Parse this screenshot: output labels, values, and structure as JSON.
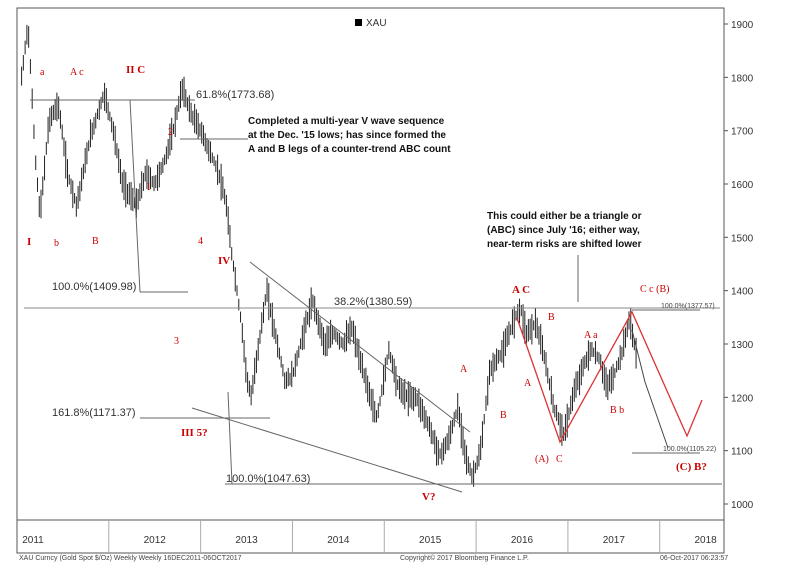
{
  "chart_data": {
    "type": "candlestick",
    "title": "",
    "legend": {
      "label": "XAU",
      "color": "#000000",
      "placement": "top-center"
    },
    "footer": {
      "left": "XAU Curncy (Gold Spot  $/Oz) Weekly  Weekly 16DEC2011-06OCT2017",
      "center": "Copyright© 2017 Bloomberg Finance L.P.",
      "right": "06-Oct-2017 06:23:57"
    },
    "x_axis": {
      "labels": [
        "2011",
        "2012",
        "2013",
        "2014",
        "2015",
        "2016",
        "2017",
        "2018"
      ],
      "range": [
        2011.0,
        2018.7
      ]
    },
    "y_axis": {
      "ticks": [
        1000,
        1100,
        1200,
        1300,
        1400,
        1500,
        1600,
        1700,
        1800,
        1900
      ],
      "tick_labels": [
        "1000",
        "1100",
        "1200",
        "1300",
        "1400",
        "1500",
        "1600",
        "1700",
        "1800",
        "1900"
      ],
      "range": [
        970,
        1930
      ],
      "position": "right"
    },
    "price_path": [
      [
        2011.05,
        1800
      ],
      [
        2011.12,
        1900
      ],
      [
        2011.2,
        1650
      ],
      [
        2011.25,
        1540
      ],
      [
        2011.35,
        1720
      ],
      [
        2011.45,
        1750
      ],
      [
        2011.55,
        1620
      ],
      [
        2011.65,
        1560
      ],
      [
        2011.8,
        1690
      ],
      [
        2011.95,
        1770
      ],
      [
        2012.05,
        1700
      ],
      [
        2012.15,
        1600
      ],
      [
        2012.3,
        1560
      ],
      [
        2012.4,
        1620
      ],
      [
        2012.5,
        1600
      ],
      [
        2012.6,
        1640
      ],
      [
        2012.7,
        1700
      ],
      [
        2012.8,
        1780
      ],
      [
        2012.9,
        1730
      ],
      [
        2013.0,
        1700
      ],
      [
        2013.1,
        1660
      ],
      [
        2013.2,
        1620
      ],
      [
        2013.28,
        1560
      ],
      [
        2013.33,
        1480
      ],
      [
        2013.38,
        1420
      ],
      [
        2013.45,
        1330
      ],
      [
        2013.5,
        1240
      ],
      [
        2013.55,
        1200
      ],
      [
        2013.65,
        1320
      ],
      [
        2013.72,
        1400
      ],
      [
        2013.8,
        1330
      ],
      [
        2013.92,
        1230
      ],
      [
        2014.0,
        1240
      ],
      [
        2014.15,
        1340
      ],
      [
        2014.22,
        1380
      ],
      [
        2014.35,
        1300
      ],
      [
        2014.45,
        1320
      ],
      [
        2014.55,
        1300
      ],
      [
        2014.65,
        1330
      ],
      [
        2014.75,
        1260
      ],
      [
        2014.85,
        1200
      ],
      [
        2014.92,
        1160
      ],
      [
        2015.05,
        1290
      ],
      [
        2015.15,
        1220
      ],
      [
        2015.25,
        1200
      ],
      [
        2015.35,
        1200
      ],
      [
        2015.5,
        1140
      ],
      [
        2015.6,
        1090
      ],
      [
        2015.7,
        1120
      ],
      [
        2015.8,
        1180
      ],
      [
        2015.9,
        1080
      ],
      [
        2015.96,
        1050
      ],
      [
        2016.05,
        1100
      ],
      [
        2016.15,
        1250
      ],
      [
        2016.3,
        1290
      ],
      [
        2016.4,
        1340
      ],
      [
        2016.48,
        1370
      ],
      [
        2016.55,
        1320
      ],
      [
        2016.65,
        1340
      ],
      [
        2016.75,
        1270
      ],
      [
        2016.85,
        1180
      ],
      [
        2016.96,
        1130
      ],
      [
        2017.05,
        1200
      ],
      [
        2017.15,
        1250
      ],
      [
        2017.25,
        1290
      ],
      [
        2017.35,
        1270
      ],
      [
        2017.42,
        1220
      ],
      [
        2017.5,
        1240
      ],
      [
        2017.6,
        1290
      ],
      [
        2017.67,
        1350
      ],
      [
        2017.72,
        1300
      ],
      [
        2017.75,
        1280
      ]
    ],
    "fib_levels": [
      {
        "label": "61.8%(1773.68)",
        "value": 1773.68
      },
      {
        "label": "100.0%(1409.98)",
        "value": 1409.98
      },
      {
        "label": "38.2%(1380.59)",
        "value": 1380.59
      },
      {
        "label": "161.8%(1171.37)",
        "value": 1171.37
      },
      {
        "label": "100.0%(1047.63)",
        "value": 1047.63
      },
      {
        "label": "100.0%(1377.57)",
        "value": 1377.57
      },
      {
        "label": "100.0%(1105.22)",
        "value": 1105.22
      }
    ],
    "wave_labels": [
      "I",
      "a",
      "A c",
      "b",
      "B",
      "II C",
      "2",
      "1",
      "4",
      "3",
      "IV",
      "III 5?",
      "V?",
      "A C",
      "A",
      "B",
      "A",
      "B",
      "(A)",
      "C",
      "A a",
      "B b",
      "C c (B)",
      "(C) B?"
    ],
    "annotations": [
      "Completed a multi-year V wave sequence",
      "at the Dec. '15 lows; has since formed the",
      "A and B legs of a counter-trend ABC count",
      "This could either be a triangle or",
      "(ABC) since July '16; either way,",
      "near-term risks are shifted lower"
    ],
    "colors": {
      "wave_label": "#cc0000",
      "projection": "#dd3333",
      "price": "#222222",
      "line": "#666666"
    }
  }
}
